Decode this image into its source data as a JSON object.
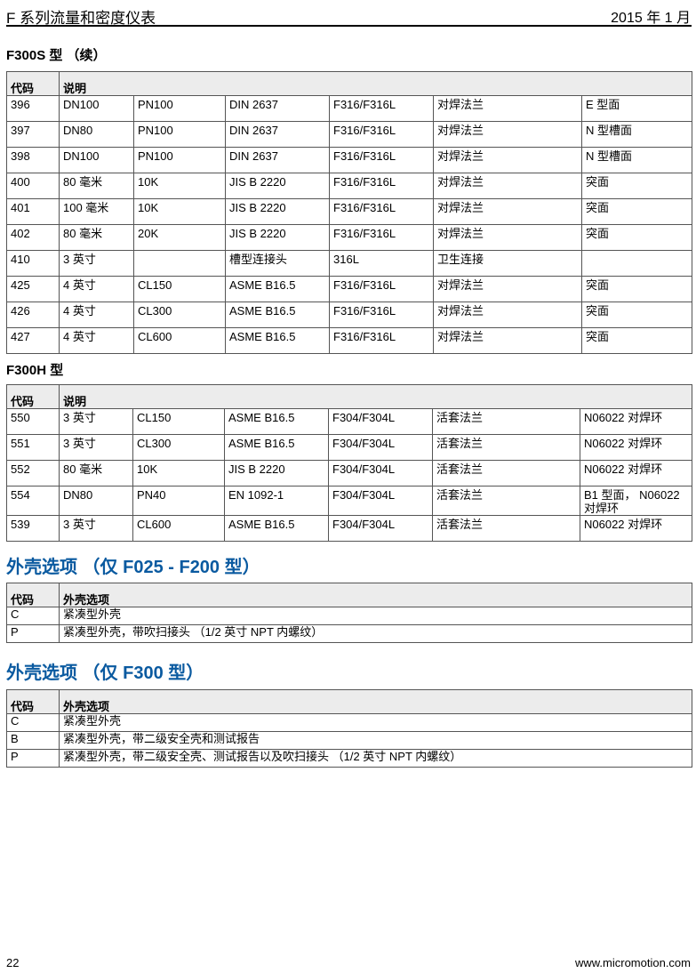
{
  "header": {
    "title": "F 系列流量和密度仪表",
    "date": "2015 年 1 月"
  },
  "section1": {
    "title": "F300S 型  （续）",
    "headers": [
      "代码",
      "说明"
    ],
    "rows": [
      [
        "396",
        "DN100",
        "PN100",
        "DIN 2637",
        "F316/F316L",
        "对焊法兰",
        "E 型面"
      ],
      [
        "397",
        "DN80",
        "PN100",
        "DIN 2637",
        "F316/F316L",
        "对焊法兰",
        "N 型槽面"
      ],
      [
        "398",
        "DN100",
        "PN100",
        "DIN 2637",
        "F316/F316L",
        "对焊法兰",
        "N 型槽面"
      ],
      [
        "400",
        "80 毫米",
        "10K",
        "JIS B 2220",
        "F316/F316L",
        "对焊法兰",
        "突面"
      ],
      [
        "401",
        "100 毫米",
        "10K",
        "JIS B 2220",
        "F316/F316L",
        "对焊法兰",
        "突面"
      ],
      [
        "402",
        "80 毫米",
        "20K",
        "JIS B 2220",
        "F316/F316L",
        "对焊法兰",
        "突面"
      ],
      [
        "410",
        "3 英寸",
        "",
        "槽型连接头",
        "316L",
        "卫生连接",
        ""
      ],
      [
        "425",
        "4 英寸",
        "CL150",
        "ASME B16.5",
        "F316/F316L",
        "对焊法兰",
        "突面"
      ],
      [
        "426",
        "4 英寸",
        "CL300",
        "ASME B16.5",
        "F316/F316L",
        "对焊法兰",
        "突面"
      ],
      [
        "427",
        "4 英寸",
        "CL600",
        "ASME B16.5",
        "F316/F316L",
        "对焊法兰",
        "突面"
      ]
    ]
  },
  "section2": {
    "title": "F300H 型",
    "headers": [
      "代码",
      "说明"
    ],
    "rows": [
      [
        "550",
        "3 英寸",
        "CL150",
        "ASME B16.5",
        "F304/F304L",
        "活套法兰",
        "N06022 对焊环"
      ],
      [
        "551",
        "3 英寸",
        "CL300",
        "ASME B16.5",
        "F304/F304L",
        "活套法兰",
        "N06022 对焊环"
      ],
      [
        "552",
        "80 毫米",
        "10K",
        "JIS B 2220",
        "F304/F304L",
        "活套法兰",
        "N06022 对焊环"
      ],
      [
        "554",
        "DN80",
        "PN40",
        "EN 1092-1",
        "F304/F304L",
        "活套法兰",
        "B1 型面， N06022 对焊环"
      ],
      [
        "539",
        "3 英寸",
        "CL600",
        "ASME B16.5",
        "F304/F304L",
        "活套法兰",
        "N06022 对焊环"
      ]
    ]
  },
  "section3": {
    "title": "外壳选项 （仅 F025 - F200 型）",
    "headers": [
      "代码",
      "外壳选项"
    ],
    "rows": [
      [
        "C",
        "紧凑型外壳"
      ],
      [
        "P",
        "紧凑型外壳，带吹扫接头 （1/2 英寸 NPT 内螺纹）"
      ]
    ]
  },
  "section4": {
    "title": "外壳选项 （仅 F300 型）",
    "headers": [
      "代码",
      "外壳选项"
    ],
    "rows": [
      [
        "C",
        "紧凑型外壳"
      ],
      [
        "B",
        "紧凑型外壳，带二级安全壳和测试报告"
      ],
      [
        "P",
        "紧凑型外壳，带二级安全壳、测试报告以及吹扫接头 （1/2 英寸 NPT 内螺纹）"
      ]
    ]
  },
  "footer": {
    "page": "22",
    "url": "www.micromotion.com"
  },
  "colors": {
    "heading_blue": "#0a5aa0",
    "header_bg": "#ececec"
  }
}
